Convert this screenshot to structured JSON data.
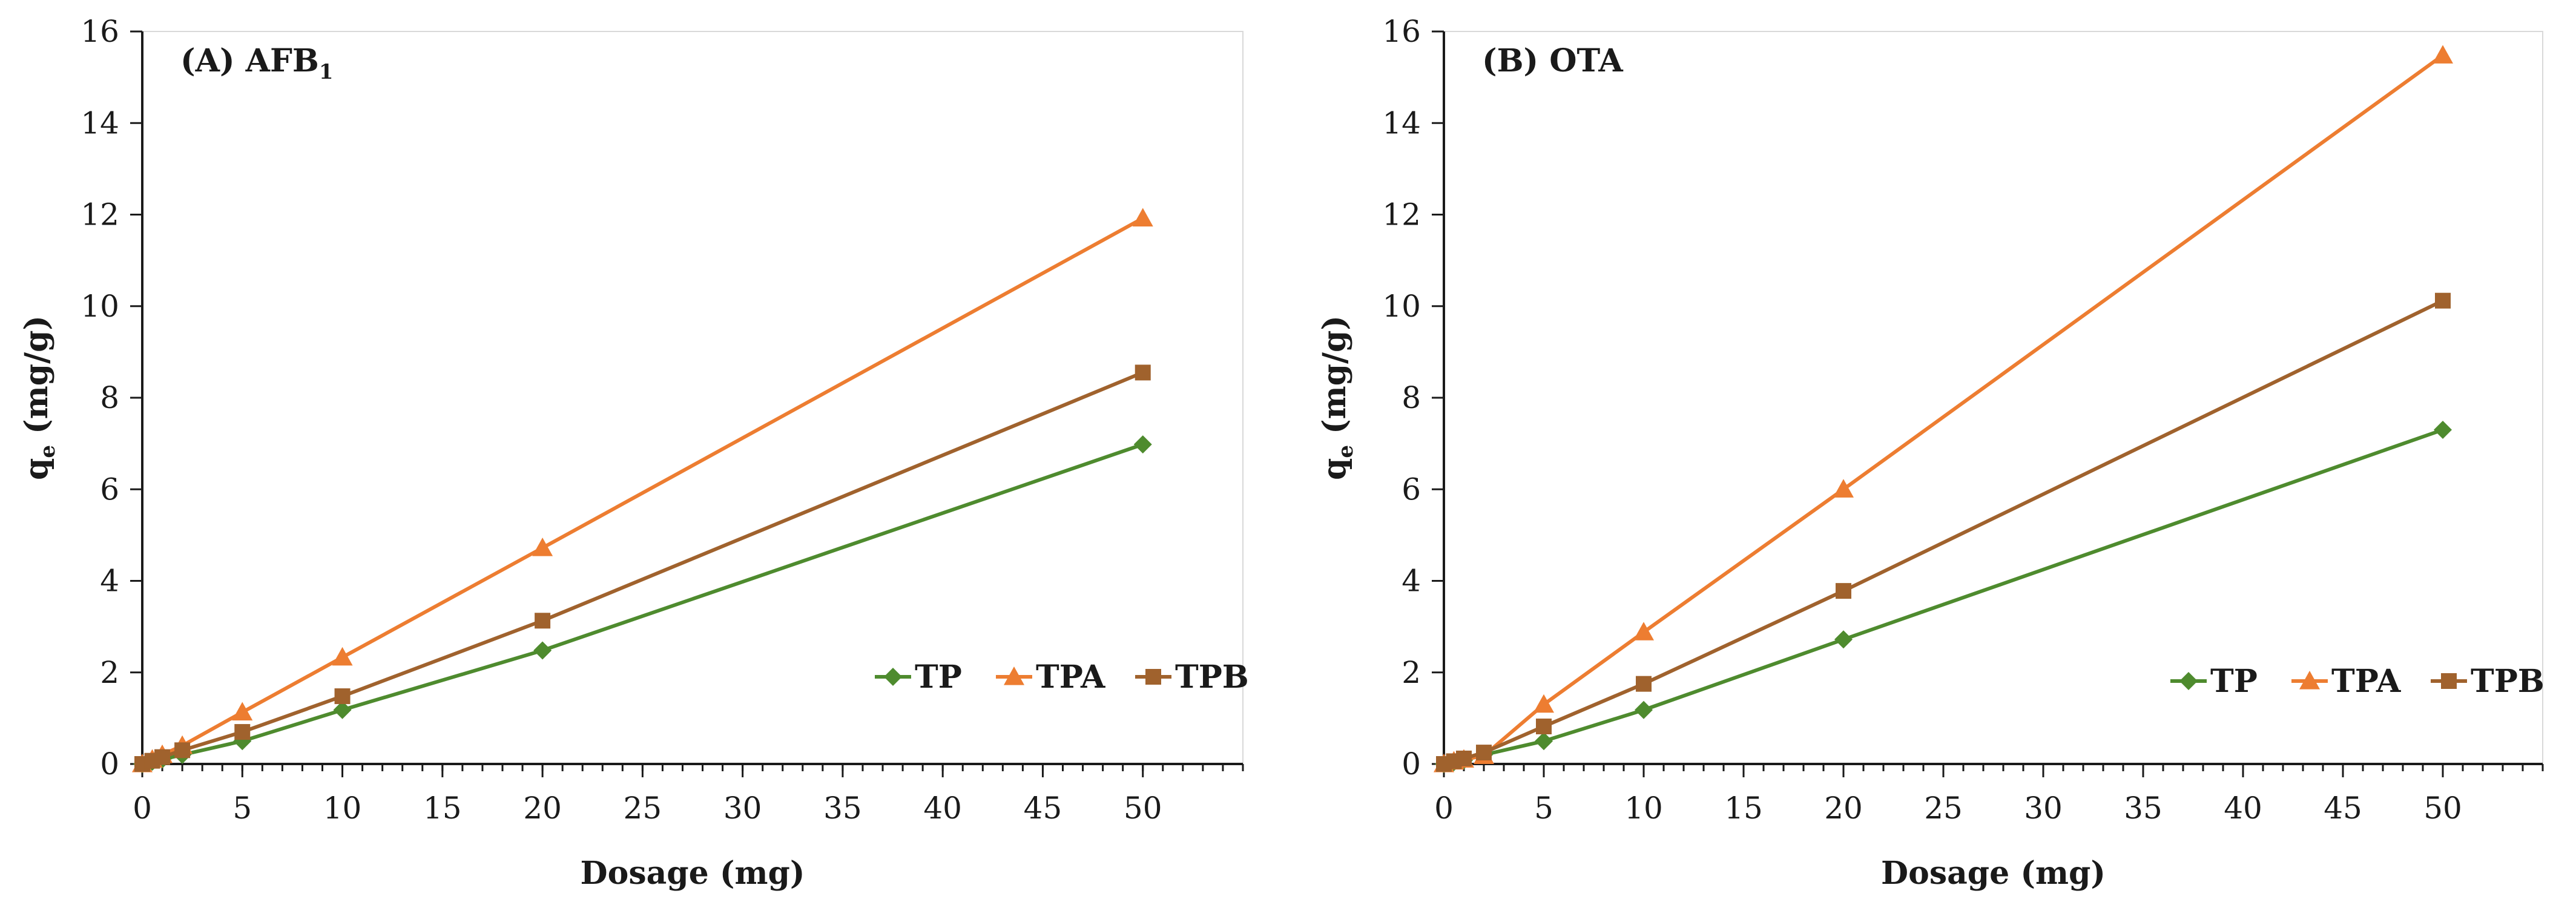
{
  "chart_data": [
    {
      "type": "line",
      "title_main": "(A) AFB",
      "title_sub": "1",
      "xlabel": "Dosage (mg)",
      "ylabel_main": "q",
      "ylabel_sub": "e",
      "ylabel_rest": " (mg/g)",
      "xlim": [
        0,
        55
      ],
      "ylim": [
        0,
        16
      ],
      "xticks": [
        0,
        5,
        10,
        15,
        20,
        25,
        30,
        35,
        40,
        45,
        50
      ],
      "yticks": [
        0,
        2,
        4,
        6,
        8,
        10,
        12,
        14,
        16
      ],
      "x_minor_step": 1,
      "grid": false,
      "legend_position": "bottom-right",
      "x": [
        0,
        0.5,
        1,
        2,
        5,
        10,
        20,
        50
      ],
      "series": [
        {
          "name": "TP",
          "color": "#4e8b2e",
          "marker": "diamond",
          "values": [
            0,
            0.05,
            0.1,
            0.2,
            0.5,
            1.18,
            2.48,
            6.98
          ]
        },
        {
          "name": "TPA",
          "color": "#ed7d31",
          "marker": "triangle",
          "values": [
            0,
            0.1,
            0.2,
            0.4,
            1.13,
            2.33,
            4.72,
            11.92
          ]
        },
        {
          "name": "TPB",
          "color": "#a0622d",
          "marker": "square",
          "values": [
            0,
            0.07,
            0.15,
            0.3,
            0.7,
            1.48,
            3.13,
            8.55
          ]
        }
      ]
    },
    {
      "type": "line",
      "title_main": "(B) OTA",
      "title_sub": "",
      "xlabel": "Dosage (mg)",
      "ylabel_main": "q",
      "ylabel_sub": "e",
      "ylabel_rest": " (mg/g)",
      "xlim": [
        0,
        55
      ],
      "ylim": [
        0,
        16
      ],
      "xticks": [
        0,
        5,
        10,
        15,
        20,
        25,
        30,
        35,
        40,
        45,
        50
      ],
      "yticks": [
        0,
        2,
        4,
        6,
        8,
        10,
        12,
        14,
        16
      ],
      "x_minor_step": 1,
      "grid": false,
      "legend_position": "bottom-right",
      "x": [
        0,
        0.5,
        1,
        2,
        5,
        10,
        20,
        50
      ],
      "series": [
        {
          "name": "TP",
          "color": "#4e8b2e",
          "marker": "diamond",
          "values": [
            0,
            0.04,
            0.08,
            0.2,
            0.5,
            1.18,
            2.72,
            7.3
          ]
        },
        {
          "name": "TPA",
          "color": "#ed7d31",
          "marker": "triangle",
          "values": [
            0,
            0.06,
            0.1,
            0.18,
            1.3,
            2.88,
            6.0,
            15.48
          ]
        },
        {
          "name": "TPB",
          "color": "#a0622d",
          "marker": "square",
          "values": [
            0,
            0.06,
            0.12,
            0.25,
            0.82,
            1.75,
            3.78,
            10.12
          ]
        }
      ]
    }
  ]
}
